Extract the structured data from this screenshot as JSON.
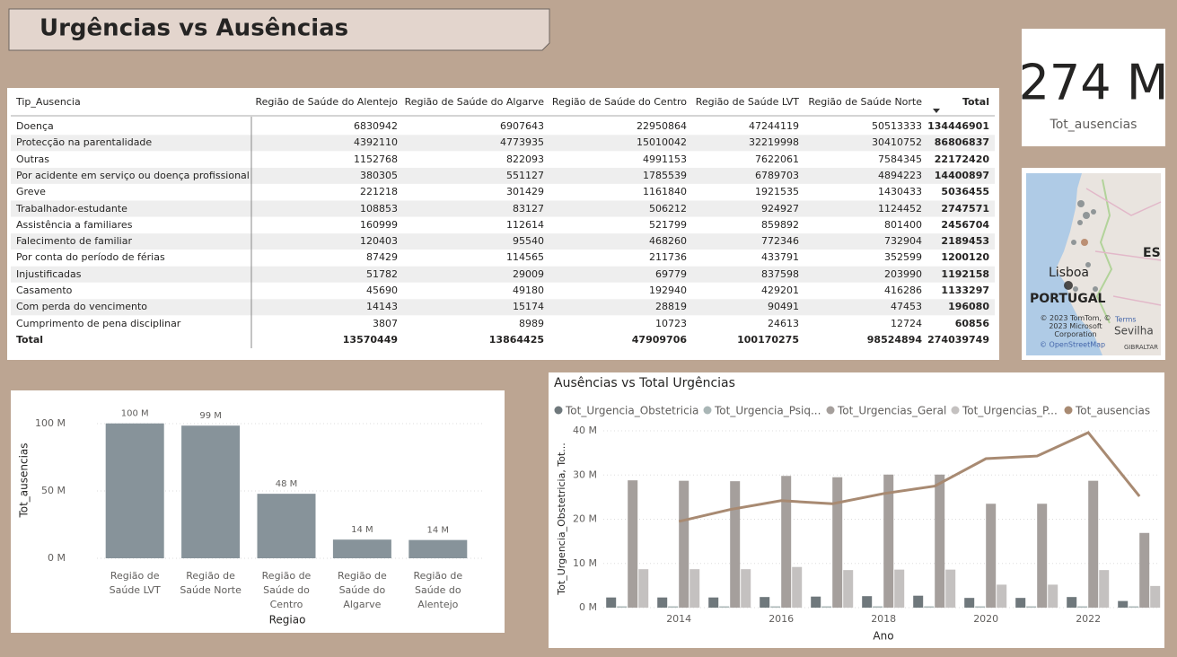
{
  "header": {
    "title": "Urgências vs Ausências"
  },
  "kpi": {
    "value": "274 M",
    "label": "Tot_ausencias"
  },
  "table": {
    "header": [
      "Tip_Ausencia",
      "Região de Saúde do Alentejo",
      "Região de Saúde do Algarve",
      "Região de Saúde do Centro",
      "Região de Saúde LVT",
      "Região de Saúde Norte",
      "Total"
    ],
    "rows": [
      [
        "Doença",
        6830942,
        6907643,
        22950864,
        47244119,
        50513333,
        134446901
      ],
      [
        "Protecção na parentalidade",
        4392110,
        4773935,
        15010042,
        32219998,
        30410752,
        86806837
      ],
      [
        "Outras",
        1152768,
        822093,
        4991153,
        7622061,
        7584345,
        22172420
      ],
      [
        "Por acidente em serviço ou doença profissional",
        380305,
        551127,
        1785539,
        6789703,
        4894223,
        14400897
      ],
      [
        "Greve",
        221218,
        301429,
        1161840,
        1921535,
        1430433,
        5036455
      ],
      [
        "Trabalhador-estudante",
        108853,
        83127,
        506212,
        924927,
        1124452,
        2747571
      ],
      [
        "Assistência a familiares",
        160999,
        112614,
        521799,
        859892,
        801400,
        2456704
      ],
      [
        "Falecimento de familiar",
        120403,
        95540,
        468260,
        772346,
        732904,
        2189453
      ],
      [
        "Por conta do período de férias",
        87429,
        114565,
        211736,
        433791,
        352599,
        1200120
      ],
      [
        "Injustificadas",
        51782,
        29009,
        69779,
        837598,
        203990,
        1192158
      ],
      [
        "Casamento",
        45690,
        49180,
        192940,
        429201,
        416286,
        1133297
      ],
      [
        "Com perda do vencimento",
        14143,
        15174,
        28819,
        90491,
        47453,
        196080
      ],
      [
        "Cumprimento de pena disciplinar",
        3807,
        8989,
        10723,
        24613,
        12724,
        60856
      ]
    ],
    "total": [
      "Total",
      13570449,
      13864425,
      47909706,
      100170275,
      98524894,
      274039749
    ]
  },
  "map": {
    "labels": [
      "ES",
      "Lisboa",
      "PORTUGAL",
      "Sevilha",
      "GIBRALTAR"
    ],
    "attribution": "© 2023 TomTom, © 2023 Microsoft Corporation",
    "terms": "Terms",
    "osm": "© OpenStreetMap"
  },
  "chart_data": [
    {
      "type": "bar",
      "x_label": "Regiao",
      "y_label": "Tot_ausencias",
      "color": "#87939a",
      "grid": true,
      "categories": [
        "Região de Saúde LVT",
        "Região de Saúde Norte",
        "Região de Saúde do Centro",
        "Região de Saúde do Algarve",
        "Região de Saúde do Alentejo"
      ],
      "values": [
        100170275,
        98524894,
        47909706,
        13864425,
        13570449
      ],
      "value_labels": [
        "100 M",
        "99 M",
        "48 M",
        "14 M",
        "14 M"
      ],
      "ylim": [
        0,
        110000000
      ],
      "yticks": [
        {
          "value": 0,
          "label": "0 M"
        },
        {
          "value": 50000000,
          "label": "50 M"
        },
        {
          "value": 100000000,
          "label": "100 M"
        }
      ]
    },
    {
      "type": "combo",
      "title": "Ausências vs Total Urgências",
      "x_label": "Ano",
      "y_label": "Tot_Urgencia_Obstetricia, Tot...",
      "grid": true,
      "x": [
        2013,
        2014,
        2015,
        2016,
        2017,
        2018,
        2019,
        2020,
        2021,
        2022,
        2023
      ],
      "xlim": [
        2012.4,
        2023.4
      ],
      "xticks": [
        2014,
        2016,
        2018,
        2020,
        2022
      ],
      "ylim": [
        0,
        40000000
      ],
      "yticks": [
        {
          "value": 0,
          "label": "0 M"
        },
        {
          "value": 10000000,
          "label": "10 M"
        },
        {
          "value": 20000000,
          "label": "20 M"
        },
        {
          "value": 30000000,
          "label": "30 M"
        },
        {
          "value": 40000000,
          "label": "40 M"
        }
      ],
      "series": [
        {
          "name": "Tot_Urgencia_Obstetricia",
          "kind": "bar",
          "color": "#6f787c",
          "values": [
            2300000,
            2300000,
            2300000,
            2400000,
            2500000,
            2600000,
            2700000,
            2200000,
            2200000,
            2400000,
            1500000
          ]
        },
        {
          "name": "Tot_Urgencia_Psiq...",
          "kind": "bar",
          "color": "#a9b6b6",
          "values": [
            300000,
            300000,
            300000,
            300000,
            300000,
            300000,
            300000,
            300000,
            300000,
            300000,
            300000
          ]
        },
        {
          "name": "Tot_Urgencias_Geral",
          "kind": "bar",
          "color": "#a59f9c",
          "values": [
            28800000,
            28700000,
            28600000,
            29800000,
            29500000,
            30100000,
            30100000,
            23500000,
            23500000,
            28700000,
            16900000
          ]
        },
        {
          "name": "Tot_Urgencias_P...",
          "kind": "bar",
          "color": "#c4c1c0",
          "values": [
            8700000,
            8700000,
            8700000,
            9200000,
            8500000,
            8600000,
            8600000,
            5200000,
            5200000,
            8500000,
            4900000
          ]
        },
        {
          "name": "Tot_ausencias",
          "kind": "line",
          "color": "#a88a72",
          "values": [
            null,
            19500000,
            22200000,
            24200000,
            23500000,
            25800000,
            27500000,
            33700000,
            34300000,
            39600000,
            25200000
          ]
        }
      ]
    }
  ]
}
